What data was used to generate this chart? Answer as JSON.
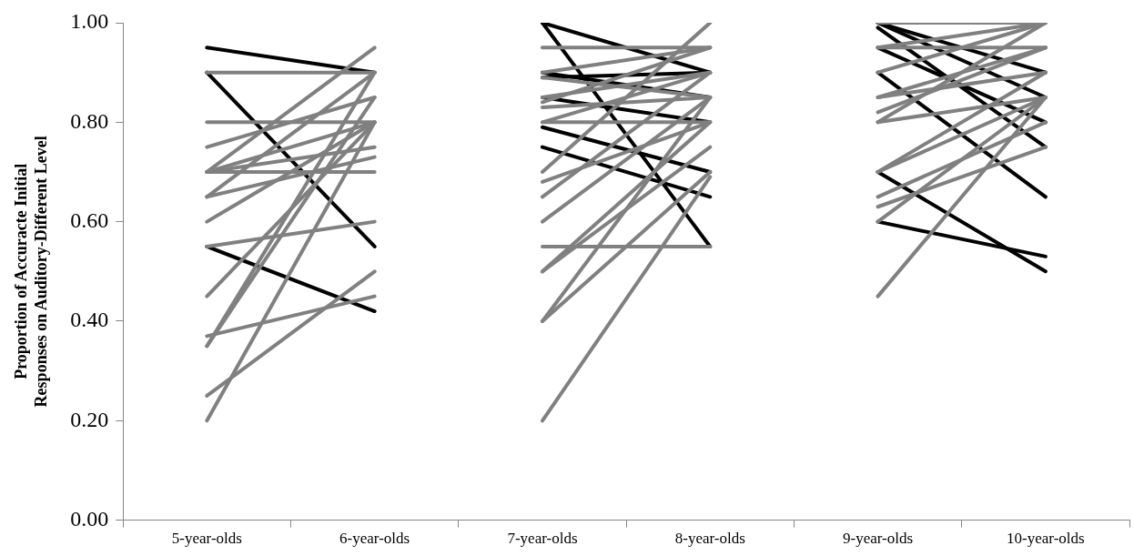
{
  "chart_data": {
    "type": "line",
    "ylabel": "Proportion of Accuracte Initial\nResponses on Auditory-Different Level",
    "categories": [
      "5-year-olds",
      "6-year-olds",
      "7-year-olds",
      "8-year-olds",
      "9-year-olds",
      "10-year-olds"
    ],
    "ylim": [
      0,
      1
    ],
    "yticks": [
      {
        "value": 0,
        "label": "0.00"
      },
      {
        "value": 0.2,
        "label": "0.20"
      },
      {
        "value": 0.4,
        "label": "0.40"
      },
      {
        "value": 0.6,
        "label": "0.60"
      },
      {
        "value": 0.8,
        "label": "0.80"
      },
      {
        "value": 1,
        "label": "1.00"
      }
    ],
    "grid": false,
    "legend": false,
    "marker": "none",
    "line_style": "solid",
    "series": [
      {
        "color": "#808080",
        "values": [
          0.9,
          0.9,
          null,
          null,
          null,
          null
        ]
      },
      {
        "color": "#808080",
        "values": [
          0.8,
          0.8,
          null,
          null,
          null,
          null
        ]
      },
      {
        "color": "#808080",
        "values": [
          0.75,
          0.85,
          null,
          null,
          null,
          null
        ]
      },
      {
        "color": "#808080",
        "values": [
          0.7,
          0.7,
          null,
          null,
          null,
          null
        ]
      },
      {
        "color": "#808080",
        "values": [
          0.7,
          0.8,
          null,
          null,
          null,
          null
        ]
      },
      {
        "color": "#808080",
        "values": [
          0.7,
          0.75,
          null,
          null,
          null,
          null
        ]
      },
      {
        "color": "#808080",
        "values": [
          0.7,
          0.95,
          null,
          null,
          null,
          null
        ]
      },
      {
        "color": "#808080",
        "values": [
          0.65,
          0.73,
          null,
          null,
          null,
          null
        ]
      },
      {
        "color": "#808080",
        "values": [
          0.65,
          0.9,
          null,
          null,
          null,
          null
        ]
      },
      {
        "color": "#808080",
        "values": [
          0.6,
          0.8,
          null,
          null,
          null,
          null
        ]
      },
      {
        "color": "#808080",
        "values": [
          0.55,
          0.6,
          null,
          null,
          null,
          null
        ]
      },
      {
        "color": "#808080",
        "values": [
          0.45,
          0.8,
          null,
          null,
          null,
          null
        ]
      },
      {
        "color": "#808080",
        "values": [
          0.37,
          0.45,
          null,
          null,
          null,
          null
        ]
      },
      {
        "color": "#808080",
        "values": [
          0.35,
          0.85,
          null,
          null,
          null,
          null
        ]
      },
      {
        "color": "#808080",
        "values": [
          0.35,
          0.9,
          null,
          null,
          null,
          null
        ]
      },
      {
        "color": "#808080",
        "values": [
          0.25,
          0.5,
          null,
          null,
          null,
          null
        ]
      },
      {
        "color": "#808080",
        "values": [
          0.2,
          0.8,
          null,
          null,
          null,
          null
        ]
      },
      {
        "color": "#000000",
        "values": [
          0.95,
          0.9,
          null,
          null,
          null,
          null
        ]
      },
      {
        "color": "#000000",
        "values": [
          0.9,
          0.55,
          null,
          null,
          null,
          null
        ]
      },
      {
        "color": "#000000",
        "values": [
          0.55,
          0.42,
          null,
          null,
          null,
          null
        ]
      },
      {
        "color": "#808080",
        "values": [
          null,
          null,
          0.95,
          0.95,
          null,
          null
        ]
      },
      {
        "color": "#808080",
        "values": [
          null,
          null,
          0.9,
          0.95,
          null,
          null
        ]
      },
      {
        "color": "#808080",
        "values": [
          null,
          null,
          0.89,
          0.85,
          null,
          null
        ]
      },
      {
        "color": "#808080",
        "values": [
          null,
          null,
          0.85,
          0.9,
          null,
          null
        ]
      },
      {
        "color": "#808080",
        "values": [
          null,
          null,
          0.84,
          0.95,
          null,
          null
        ]
      },
      {
        "color": "#808080",
        "values": [
          null,
          null,
          0.83,
          0.85,
          null,
          null
        ]
      },
      {
        "color": "#808080",
        "values": [
          null,
          null,
          0.8,
          0.8,
          null,
          null
        ]
      },
      {
        "color": "#808080",
        "values": [
          null,
          null,
          0.8,
          0.9,
          null,
          null
        ]
      },
      {
        "color": "#808080",
        "values": [
          null,
          null,
          0.7,
          1.0,
          null,
          null
        ]
      },
      {
        "color": "#808080",
        "values": [
          null,
          null,
          0.68,
          0.8,
          null,
          null
        ]
      },
      {
        "color": "#808080",
        "values": [
          null,
          null,
          0.65,
          0.9,
          null,
          null
        ]
      },
      {
        "color": "#808080",
        "values": [
          null,
          null,
          0.6,
          0.85,
          null,
          null
        ]
      },
      {
        "color": "#808080",
        "values": [
          null,
          null,
          0.55,
          0.55,
          null,
          null
        ]
      },
      {
        "color": "#808080",
        "values": [
          null,
          null,
          0.5,
          0.8,
          null,
          null
        ]
      },
      {
        "color": "#808080",
        "values": [
          null,
          null,
          0.5,
          0.75,
          null,
          null
        ]
      },
      {
        "color": "#808080",
        "values": [
          null,
          null,
          0.4,
          0.85,
          null,
          null
        ]
      },
      {
        "color": "#808080",
        "values": [
          null,
          null,
          0.4,
          0.7,
          null,
          null
        ]
      },
      {
        "color": "#808080",
        "values": [
          null,
          null,
          0.2,
          0.69,
          null,
          null
        ]
      },
      {
        "color": "#000000",
        "values": [
          null,
          null,
          1.0,
          0.9,
          null,
          null
        ]
      },
      {
        "color": "#000000",
        "values": [
          null,
          null,
          1.0,
          0.55,
          null,
          null
        ]
      },
      {
        "color": "#000000",
        "values": [
          null,
          null,
          0.9,
          0.85,
          null,
          null
        ]
      },
      {
        "color": "#000000",
        "values": [
          null,
          null,
          0.89,
          0.9,
          null,
          null
        ]
      },
      {
        "color": "#000000",
        "values": [
          null,
          null,
          0.85,
          0.8,
          null,
          null
        ]
      },
      {
        "color": "#000000",
        "values": [
          null,
          null,
          0.79,
          0.7,
          null,
          null
        ]
      },
      {
        "color": "#000000",
        "values": [
          null,
          null,
          0.75,
          0.65,
          null,
          null
        ]
      },
      {
        "color": "#808080",
        "values": [
          null,
          null,
          null,
          null,
          1.0,
          1.0
        ]
      },
      {
        "color": "#808080",
        "values": [
          null,
          null,
          null,
          null,
          0.95,
          1.0
        ]
      },
      {
        "color": "#808080",
        "values": [
          null,
          null,
          null,
          null,
          0.95,
          0.95
        ]
      },
      {
        "color": "#808080",
        "values": [
          null,
          null,
          null,
          null,
          0.9,
          1.0
        ]
      },
      {
        "color": "#808080",
        "values": [
          null,
          null,
          null,
          null,
          0.85,
          0.95
        ]
      },
      {
        "color": "#808080",
        "values": [
          null,
          null,
          null,
          null,
          0.85,
          0.9
        ]
      },
      {
        "color": "#808080",
        "values": [
          null,
          null,
          null,
          null,
          0.82,
          0.95
        ]
      },
      {
        "color": "#808080",
        "values": [
          null,
          null,
          null,
          null,
          0.8,
          1.0
        ]
      },
      {
        "color": "#808080",
        "values": [
          null,
          null,
          null,
          null,
          0.8,
          0.85
        ]
      },
      {
        "color": "#808080",
        "values": [
          null,
          null,
          null,
          null,
          0.7,
          0.85
        ]
      },
      {
        "color": "#808080",
        "values": [
          null,
          null,
          null,
          null,
          0.7,
          0.9
        ]
      },
      {
        "color": "#808080",
        "values": [
          null,
          null,
          null,
          null,
          0.65,
          0.8
        ]
      },
      {
        "color": "#808080",
        "values": [
          null,
          null,
          null,
          null,
          0.63,
          0.75
        ]
      },
      {
        "color": "#808080",
        "values": [
          null,
          null,
          null,
          null,
          0.6,
          0.85
        ]
      },
      {
        "color": "#808080",
        "values": [
          null,
          null,
          null,
          null,
          0.45,
          0.85
        ]
      },
      {
        "color": "#000000",
        "values": [
          null,
          null,
          null,
          null,
          1.0,
          0.9
        ]
      },
      {
        "color": "#000000",
        "values": [
          null,
          null,
          null,
          null,
          1.0,
          0.85
        ]
      },
      {
        "color": "#000000",
        "values": [
          null,
          null,
          null,
          null,
          0.99,
          0.75
        ]
      },
      {
        "color": "#000000",
        "values": [
          null,
          null,
          null,
          null,
          0.95,
          0.8
        ]
      },
      {
        "color": "#000000",
        "values": [
          null,
          null,
          null,
          null,
          0.9,
          0.65
        ]
      },
      {
        "color": "#000000",
        "values": [
          null,
          null,
          null,
          null,
          0.7,
          0.5
        ]
      },
      {
        "color": "#000000",
        "values": [
          null,
          null,
          null,
          null,
          0.6,
          0.53
        ]
      }
    ]
  }
}
